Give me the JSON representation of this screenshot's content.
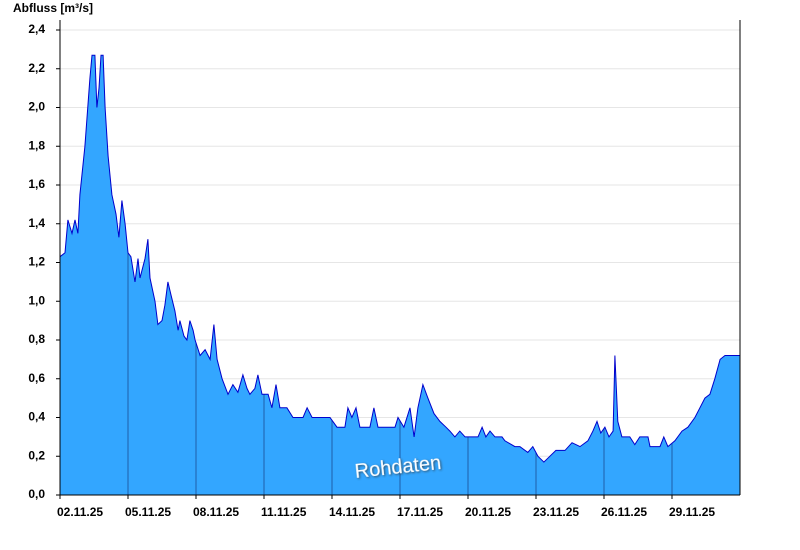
{
  "chart_data": {
    "type": "area",
    "title": "Abfluss [m³/s]",
    "annotation": "Rohdaten",
    "color": "#33a6ff",
    "line_color": "#0000cc",
    "grid": true,
    "xlim": [
      2,
      32
    ],
    "ylim": [
      0,
      2.4
    ],
    "xticks": [
      {
        "value": 2,
        "label": "02.11.25"
      },
      {
        "value": 5,
        "label": "05.11.25"
      },
      {
        "value": 8,
        "label": "08.11.25"
      },
      {
        "value": 11,
        "label": "11.11.25"
      },
      {
        "value": 14,
        "label": "14.11.25"
      },
      {
        "value": 17,
        "label": "17.11.25"
      },
      {
        "value": 20,
        "label": "20.11.25"
      },
      {
        "value": 23,
        "label": "23.11.25"
      },
      {
        "value": 26,
        "label": "26.11.25"
      },
      {
        "value": 29,
        "label": "29.11.25"
      }
    ],
    "yticks": [
      {
        "value": 0,
        "label": "0,0"
      },
      {
        "value": 0.2,
        "label": "0,2"
      },
      {
        "value": 0.4,
        "label": "0,4"
      },
      {
        "value": 0.6,
        "label": "0,6"
      },
      {
        "value": 0.8,
        "label": "0,8"
      },
      {
        "value": 1.0,
        "label": "1,0"
      },
      {
        "value": 1.2,
        "label": "1,2"
      },
      {
        "value": 1.4,
        "label": "1,4"
      },
      {
        "value": 1.6,
        "label": "1,6"
      },
      {
        "value": 1.8,
        "label": "1,8"
      },
      {
        "value": 2.0,
        "label": "2,0"
      },
      {
        "value": 2.2,
        "label": "2,2"
      },
      {
        "value": 2.4,
        "label": "2,4"
      }
    ],
    "x": [
      2.0,
      2.22,
      2.35,
      2.53,
      2.66,
      2.79,
      2.88,
      3.1,
      3.32,
      3.41,
      3.54,
      3.63,
      3.72,
      3.81,
      3.9,
      3.99,
      4.12,
      4.29,
      4.47,
      4.6,
      4.73,
      4.87,
      5.0,
      5.13,
      5.31,
      5.44,
      5.53,
      5.75,
      5.88,
      5.97,
      6.19,
      6.32,
      6.5,
      6.63,
      6.76,
      6.9,
      7.07,
      7.21,
      7.29,
      7.47,
      7.6,
      7.73,
      7.87,
      7.96,
      8.18,
      8.4,
      8.62,
      8.79,
      8.93,
      9.15,
      9.41,
      9.63,
      9.85,
      10.07,
      10.25,
      10.38,
      10.6,
      10.73,
      10.91,
      11.18,
      11.35,
      11.53,
      11.7,
      12.01,
      12.28,
      12.72,
      12.9,
      13.12,
      13.91,
      14.22,
      14.57,
      14.7,
      14.88,
      15.06,
      15.23,
      15.67,
      15.85,
      16.03,
      16.78,
      16.91,
      17.17,
      17.44,
      17.62,
      17.79,
      18.01,
      18.23,
      18.5,
      18.76,
      19.03,
      19.2,
      19.42,
      19.64,
      19.87,
      20.09,
      20.44,
      20.62,
      20.79,
      20.97,
      21.19,
      21.5,
      21.63,
      22.07,
      22.29,
      22.64,
      22.86,
      23.09,
      23.35,
      23.61,
      23.88,
      24.28,
      24.59,
      24.94,
      25.29,
      25.51,
      25.69,
      25.86,
      26.04,
      26.22,
      26.4,
      26.48,
      26.61,
      26.79,
      27.14,
      27.36,
      27.58,
      27.94,
      28.03,
      28.47,
      28.64,
      28.82,
      29.13,
      29.44,
      29.7,
      30.01,
      30.23,
      30.45,
      30.67,
      30.89,
      31.12,
      31.34,
      32.0
    ],
    "values": [
      1.23,
      1.25,
      1.42,
      1.35,
      1.42,
      1.35,
      1.55,
      1.8,
      2.15,
      2.27,
      2.27,
      2.0,
      2.1,
      2.27,
      2.27,
      2.0,
      1.75,
      1.55,
      1.45,
      1.33,
      1.52,
      1.4,
      1.25,
      1.23,
      1.1,
      1.22,
      1.12,
      1.22,
      1.32,
      1.12,
      1.0,
      0.88,
      0.9,
      0.98,
      1.1,
      1.03,
      0.95,
      0.85,
      0.9,
      0.82,
      0.8,
      0.9,
      0.85,
      0.8,
      0.72,
      0.75,
      0.7,
      0.88,
      0.7,
      0.6,
      0.52,
      0.57,
      0.53,
      0.62,
      0.55,
      0.52,
      0.55,
      0.62,
      0.52,
      0.52,
      0.45,
      0.57,
      0.45,
      0.45,
      0.4,
      0.4,
      0.45,
      0.4,
      0.4,
      0.35,
      0.35,
      0.45,
      0.4,
      0.45,
      0.35,
      0.35,
      0.45,
      0.35,
      0.35,
      0.4,
      0.35,
      0.45,
      0.3,
      0.45,
      0.57,
      0.5,
      0.42,
      0.38,
      0.35,
      0.33,
      0.3,
      0.33,
      0.3,
      0.3,
      0.3,
      0.35,
      0.3,
      0.33,
      0.3,
      0.3,
      0.28,
      0.25,
      0.25,
      0.22,
      0.25,
      0.2,
      0.17,
      0.2,
      0.23,
      0.23,
      0.27,
      0.25,
      0.28,
      0.33,
      0.38,
      0.32,
      0.35,
      0.3,
      0.33,
      0.72,
      0.38,
      0.3,
      0.3,
      0.26,
      0.3,
      0.3,
      0.25,
      0.25,
      0.3,
      0.25,
      0.28,
      0.33,
      0.35,
      0.4,
      0.45,
      0.5,
      0.52,
      0.6,
      0.7,
      0.72,
      0.72
    ]
  }
}
